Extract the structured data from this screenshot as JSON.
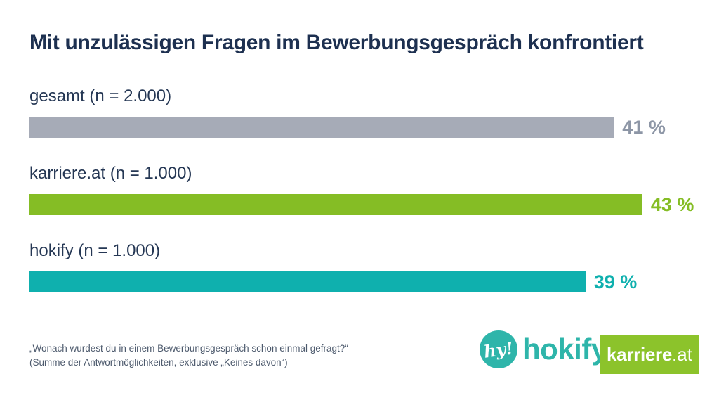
{
  "title": "Mit unzulässigen Fragen im Bewerbungsgespräch konfrontiert",
  "chart_data": {
    "type": "bar",
    "orientation": "horizontal",
    "title": "Mit unzulässigen Fragen im Bewerbungsgespräch konfrontiert",
    "categories": [
      "gesamt (n = 2.000)",
      "karriere.at (n = 1.000)",
      "hokify (n = 1.000)"
    ],
    "values": [
      41,
      43,
      39
    ],
    "unit": "%",
    "xlim": [
      0,
      45
    ],
    "grid": false,
    "legend": "none",
    "rows": [
      {
        "label": "gesamt (n = 2.000)",
        "value": 41,
        "display": "41 %",
        "bar_color": "#a6abb7",
        "value_color": "#8d96a6"
      },
      {
        "label": "karriere.at (n = 1.000)",
        "value": 43,
        "display": "43 %",
        "bar_color": "#85bd25",
        "value_color": "#85bd25"
      },
      {
        "label": "hokify (n = 1.000)",
        "value": 39,
        "display": "39 %",
        "bar_color": "#0fb0ae",
        "value_color": "#0fb0ae"
      }
    ]
  },
  "footnote": {
    "line1": "„Wonach wurdest du in einem Bewerbungsgespräch schon einmal gefragt?“",
    "line2": "(Summe der Antwortmöglichkeiten, exklusive „Keines davon“)"
  },
  "logos": {
    "hokify": {
      "badge_text": "hy!",
      "wordmark": "hokify",
      "color": "#2eb5aa"
    },
    "karriere": {
      "text_bold": "karriere",
      "text_light": ".at",
      "bg_color": "#8cc32b",
      "text_color": "#ffffff"
    }
  },
  "colors": {
    "background": "#ffffff",
    "title_text": "#1d3050",
    "label_text": "#253754",
    "footnote_text": "#4d5a6d"
  }
}
